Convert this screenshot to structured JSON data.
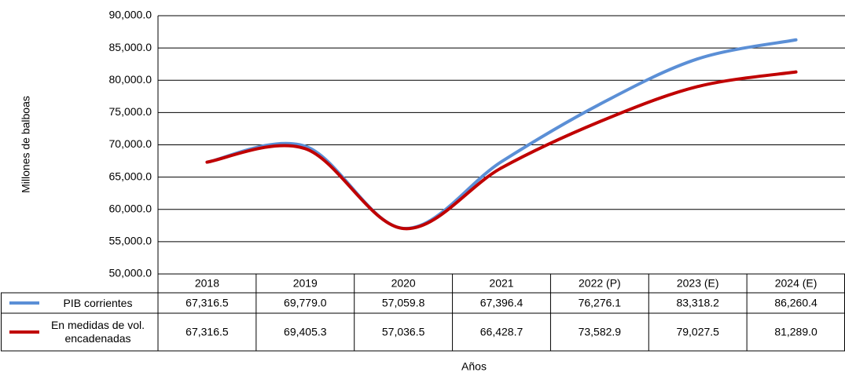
{
  "chart_data": {
    "type": "line",
    "y_label": "Millones de balboas",
    "x_label": "Años",
    "categories": [
      "2018",
      "2019",
      "2020",
      "2021",
      "2022 (P)",
      "2023 (E)",
      "2024 (E)"
    ],
    "series": [
      {
        "name": "PIB corrientes",
        "color": "#5b8fd6",
        "values": [
          67316.5,
          69779.0,
          57059.8,
          67396.4,
          76276.1,
          83318.2,
          86260.4
        ],
        "value_labels": [
          "67,316.5",
          "69,779.0",
          "57,059.8",
          "67,396.4",
          "76,276.1",
          "83,318.2",
          "86,260.4"
        ]
      },
      {
        "name": "En medidas de vol. encadenadas",
        "color": "#c00000",
        "values": [
          67316.5,
          69405.3,
          57036.5,
          66428.7,
          73582.9,
          79027.5,
          81289.0
        ],
        "value_labels": [
          "67,316.5",
          "69,405.3",
          "57,036.5",
          "66,428.7",
          "73,582.9",
          "79,027.5",
          "81,289.0"
        ]
      }
    ],
    "ylim": [
      50000,
      90000
    ],
    "yticks": [
      {
        "value": 50000,
        "label": "50,000.0"
      },
      {
        "value": 55000,
        "label": "55,000.0"
      },
      {
        "value": 60000,
        "label": "60,000.0"
      },
      {
        "value": 65000,
        "label": "65,000.0"
      },
      {
        "value": 70000,
        "label": "70,000.0"
      },
      {
        "value": 75000,
        "label": "75,000.0"
      },
      {
        "value": 80000,
        "label": "80,000.0"
      },
      {
        "value": 85000,
        "label": "85,000.0"
      },
      {
        "value": 90000,
        "label": "90,000.0"
      }
    ],
    "grid": true,
    "smooth": true
  }
}
